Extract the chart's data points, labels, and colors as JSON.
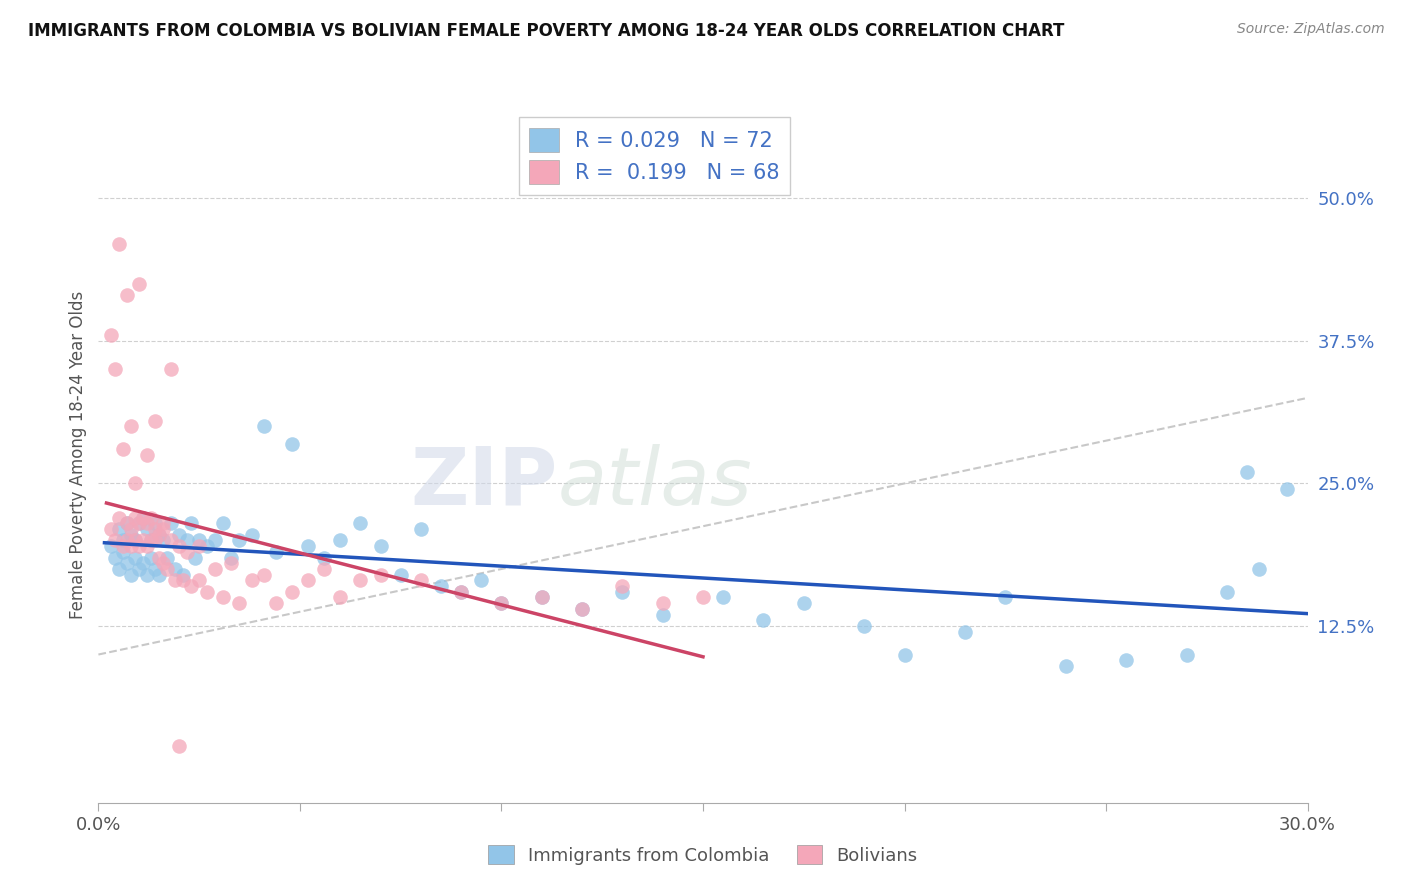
{
  "title": "IMMIGRANTS FROM COLOMBIA VS BOLIVIAN FEMALE POVERTY AMONG 18-24 YEAR OLDS CORRELATION CHART",
  "source": "Source: ZipAtlas.com",
  "ylabel": "Female Poverty Among 18-24 Year Olds",
  "xlim": [
    0.0,
    0.3
  ],
  "ylim": [
    -0.03,
    0.58
  ],
  "xtick_positions": [
    0.0,
    0.05,
    0.1,
    0.15,
    0.2,
    0.25,
    0.3
  ],
  "xticklabels": [
    "0.0%",
    "",
    "",
    "",
    "",
    "",
    "30.0%"
  ],
  "ytick_positions": [
    0.0,
    0.125,
    0.25,
    0.375,
    0.5
  ],
  "ytick_labels": [
    "",
    "12.5%",
    "25.0%",
    "37.5%",
    "50.0%"
  ],
  "blue_color": "#92c5e8",
  "pink_color": "#f4a7b9",
  "blue_R": 0.029,
  "blue_N": 72,
  "pink_R": 0.199,
  "pink_N": 68,
  "blue_x": [
    0.003,
    0.004,
    0.005,
    0.005,
    0.006,
    0.006,
    0.007,
    0.007,
    0.008,
    0.008,
    0.009,
    0.009,
    0.01,
    0.01,
    0.011,
    0.011,
    0.012,
    0.012,
    0.013,
    0.013,
    0.014,
    0.014,
    0.015,
    0.015,
    0.016,
    0.017,
    0.018,
    0.019,
    0.02,
    0.021,
    0.022,
    0.023,
    0.024,
    0.025,
    0.027,
    0.029,
    0.031,
    0.033,
    0.035,
    0.038,
    0.041,
    0.044,
    0.048,
    0.052,
    0.056,
    0.06,
    0.065,
    0.07,
    0.075,
    0.08,
    0.085,
    0.09,
    0.095,
    0.1,
    0.11,
    0.12,
    0.13,
    0.14,
    0.155,
    0.165,
    0.175,
    0.19,
    0.2,
    0.215,
    0.225,
    0.24,
    0.255,
    0.27,
    0.28,
    0.285,
    0.288,
    0.295
  ],
  "blue_y": [
    0.195,
    0.185,
    0.21,
    0.175,
    0.2,
    0.19,
    0.215,
    0.18,
    0.205,
    0.17,
    0.2,
    0.185,
    0.215,
    0.175,
    0.22,
    0.18,
    0.21,
    0.17,
    0.2,
    0.185,
    0.215,
    0.175,
    0.205,
    0.17,
    0.2,
    0.185,
    0.215,
    0.175,
    0.205,
    0.17,
    0.2,
    0.215,
    0.185,
    0.2,
    0.195,
    0.2,
    0.215,
    0.185,
    0.2,
    0.205,
    0.3,
    0.19,
    0.285,
    0.195,
    0.185,
    0.2,
    0.215,
    0.195,
    0.17,
    0.21,
    0.16,
    0.155,
    0.165,
    0.145,
    0.15,
    0.14,
    0.155,
    0.135,
    0.15,
    0.13,
    0.145,
    0.125,
    0.1,
    0.12,
    0.15,
    0.09,
    0.095,
    0.1,
    0.155,
    0.26,
    0.175,
    0.245
  ],
  "pink_x": [
    0.003,
    0.004,
    0.005,
    0.006,
    0.007,
    0.007,
    0.008,
    0.008,
    0.009,
    0.009,
    0.01,
    0.01,
    0.011,
    0.011,
    0.012,
    0.012,
    0.013,
    0.013,
    0.014,
    0.014,
    0.015,
    0.015,
    0.016,
    0.016,
    0.017,
    0.018,
    0.019,
    0.02,
    0.021,
    0.022,
    0.023,
    0.025,
    0.027,
    0.029,
    0.031,
    0.033,
    0.035,
    0.038,
    0.041,
    0.044,
    0.048,
    0.052,
    0.056,
    0.06,
    0.065,
    0.07,
    0.08,
    0.09,
    0.1,
    0.11,
    0.12,
    0.13,
    0.14,
    0.15,
    0.003,
    0.004,
    0.005,
    0.006,
    0.007,
    0.008,
    0.009,
    0.01,
    0.012,
    0.014,
    0.016,
    0.018,
    0.02,
    0.025
  ],
  "pink_y": [
    0.21,
    0.2,
    0.22,
    0.195,
    0.215,
    0.2,
    0.21,
    0.195,
    0.22,
    0.2,
    0.215,
    0.195,
    0.22,
    0.2,
    0.215,
    0.195,
    0.22,
    0.2,
    0.21,
    0.2,
    0.185,
    0.205,
    0.18,
    0.21,
    0.175,
    0.2,
    0.165,
    0.195,
    0.165,
    0.19,
    0.16,
    0.195,
    0.155,
    0.175,
    0.15,
    0.18,
    0.145,
    0.165,
    0.17,
    0.145,
    0.155,
    0.165,
    0.175,
    0.15,
    0.165,
    0.17,
    0.165,
    0.155,
    0.145,
    0.15,
    0.14,
    0.16,
    0.145,
    0.15,
    0.38,
    0.35,
    0.46,
    0.28,
    0.415,
    0.3,
    0.25,
    0.425,
    0.275,
    0.305,
    0.215,
    0.35,
    0.02,
    0.165
  ],
  "watermark_zip": "ZIP",
  "watermark_atlas": "atlas",
  "legend_blue_label": "Immigrants from Colombia",
  "legend_pink_label": "Bolivians",
  "grid_color": "#d0d0d0",
  "blue_line_color": "#2255bb",
  "pink_line_color": "#cc4466",
  "gray_line_color": "#c8c8c8",
  "title_fontsize": 12,
  "tick_fontsize": 13,
  "ylabel_fontsize": 12
}
